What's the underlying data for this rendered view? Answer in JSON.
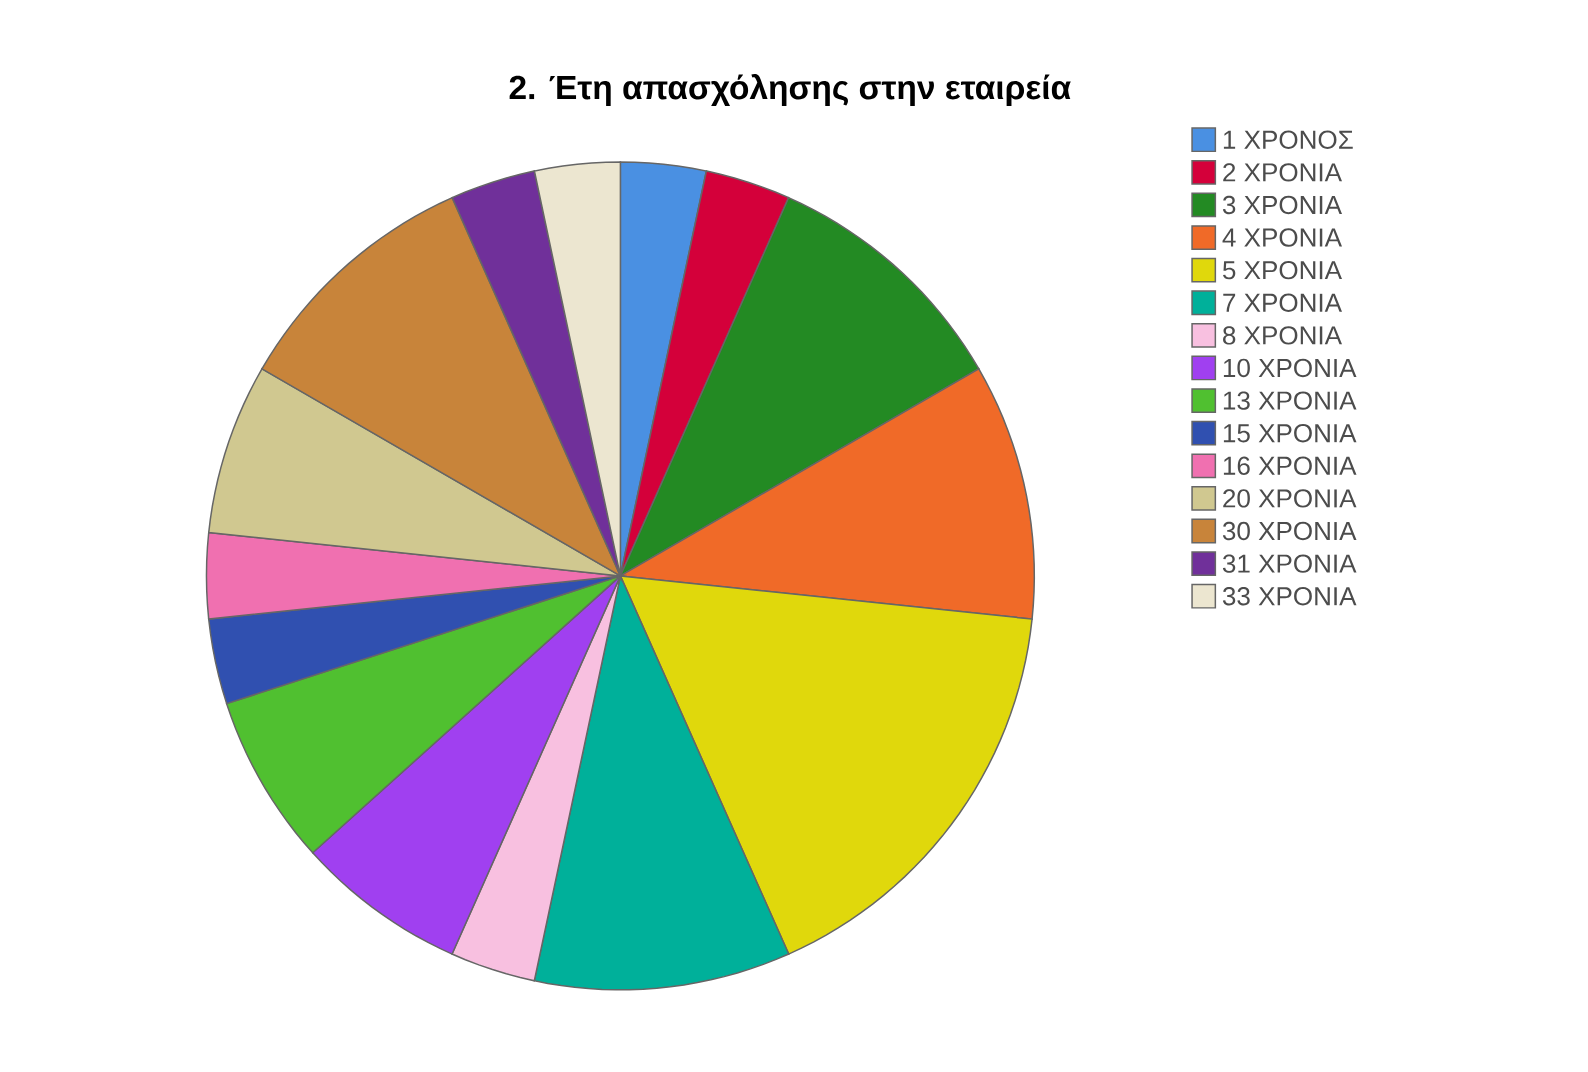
{
  "chart_data": {
    "type": "pie",
    "title": "2. Έτη απασχόλησης στην εταιρεία",
    "categories": [
      "1 ΧΡΟΝΟΣ",
      "2 ΧΡΟΝΙΑ",
      "3 ΧΡΟΝΙΑ",
      "4 ΧΡΟΝΙΑ",
      "5 ΧΡΟΝΙΑ",
      "7 ΧΡΟΝΙΑ",
      "8 ΧΡΟΝΙΑ",
      "10 ΧΡΟΝΙΑ",
      "13 ΧΡΟΝΙΑ",
      "15 ΧΡΟΝΙΑ",
      "16 ΧΡΟΝΙΑ",
      "20 ΧΡΟΝΙΑ",
      "30 ΧΡΟΝΙΑ",
      "31 ΧΡΟΝΙΑ",
      "33 ΧΡΟΝΙΑ"
    ],
    "values": [
      3.33,
      3.33,
      10,
      10,
      16.67,
      10,
      3.33,
      6.67,
      6.67,
      3.33,
      3.33,
      6.67,
      10,
      3.33,
      3.33
    ],
    "colors": [
      "#4a90e2",
      "#d4003a",
      "#238a23",
      "#f06a28",
      "#e0d80c",
      "#00b09a",
      "#f8c0e0",
      "#a040f0",
      "#50c030",
      "#3050b0",
      "#f070b0",
      "#d0c890",
      "#c8843a",
      "#70309a",
      "#ece6d0"
    ],
    "legend": "right"
  }
}
